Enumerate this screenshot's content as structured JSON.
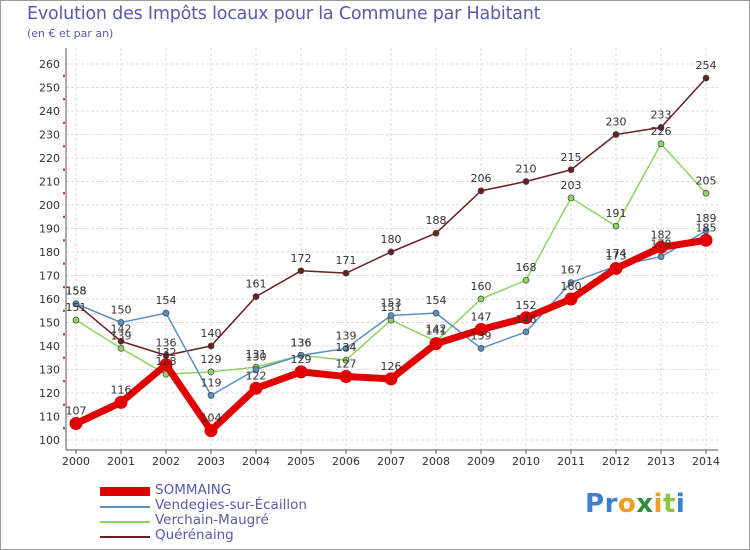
{
  "title": "Evolution des Impôts locaux pour la Commune par Habitant",
  "subtitle": "(en € et par an)",
  "logo": {
    "letters": [
      "P",
      "r",
      "o",
      "x",
      "i",
      "t",
      "i"
    ],
    "colors": [
      "#3c7fd1",
      "#3c7fd1",
      "#f39c1f",
      "#2e8f3e",
      "#f39c1f",
      "#8cc63f",
      "#3c7fd1"
    ]
  },
  "chart_data": {
    "type": "line",
    "title": "Evolution des Impôts locaux pour la Commune par Habitant",
    "subtitle": "(en € et par an)",
    "xlabel": "",
    "ylabel": "",
    "ylim": [
      100,
      260
    ],
    "yticks": [
      100,
      110,
      120,
      130,
      140,
      150,
      160,
      170,
      180,
      190,
      200,
      210,
      220,
      230,
      240,
      250,
      260
    ],
    "categories": [
      "2000",
      "2001",
      "2002",
      "2003",
      "2004",
      "2005",
      "2006",
      "2007",
      "2008",
      "2009",
      "2010",
      "2011",
      "2012",
      "2013",
      "2014"
    ],
    "grid": true,
    "legend_position": "bottom-left",
    "series": [
      {
        "name": "SOMMAING",
        "color": "#e00000",
        "values": [
          107,
          116,
          132,
          104,
          122,
          129,
          127,
          126,
          141,
          147,
          152,
          160,
          173,
          182,
          185
        ]
      },
      {
        "name": "Vendegies-sur-Écaillon",
        "color": "#5b8fc4",
        "values": [
          158,
          150,
          154,
          119,
          130,
          136,
          139,
          153,
          154,
          139,
          146,
          167,
          174,
          178,
          189
        ]
      },
      {
        "name": "Verchain-Maugré",
        "color": "#8ed462",
        "values": [
          151,
          139,
          128,
          129,
          131,
          136,
          134,
          151,
          142,
          160,
          168,
          203,
          191,
          226,
          205
        ]
      },
      {
        "name": "Quérénaing",
        "color": "#6b1f23",
        "values": [
          158,
          142,
          136,
          140,
          161,
          172,
          171,
          180,
          188,
          206,
          210,
          215,
          230,
          233,
          254
        ]
      }
    ],
    "labels": [
      [
        107,
        116,
        132,
        104,
        122,
        129,
        127,
        126,
        141,
        147,
        152,
        160,
        173,
        182,
        185
      ],
      [
        158,
        150,
        154,
        119,
        130,
        136,
        139,
        153,
        154,
        139,
        146,
        167,
        174,
        178,
        189
      ],
      [
        151,
        139,
        128,
        129,
        131,
        136,
        134,
        151,
        142,
        160,
        168,
        203,
        191,
        226,
        205
      ],
      [
        158,
        142,
        136,
        140,
        161,
        172,
        171,
        180,
        188,
        206,
        210,
        215,
        230,
        233,
        254
      ]
    ]
  }
}
